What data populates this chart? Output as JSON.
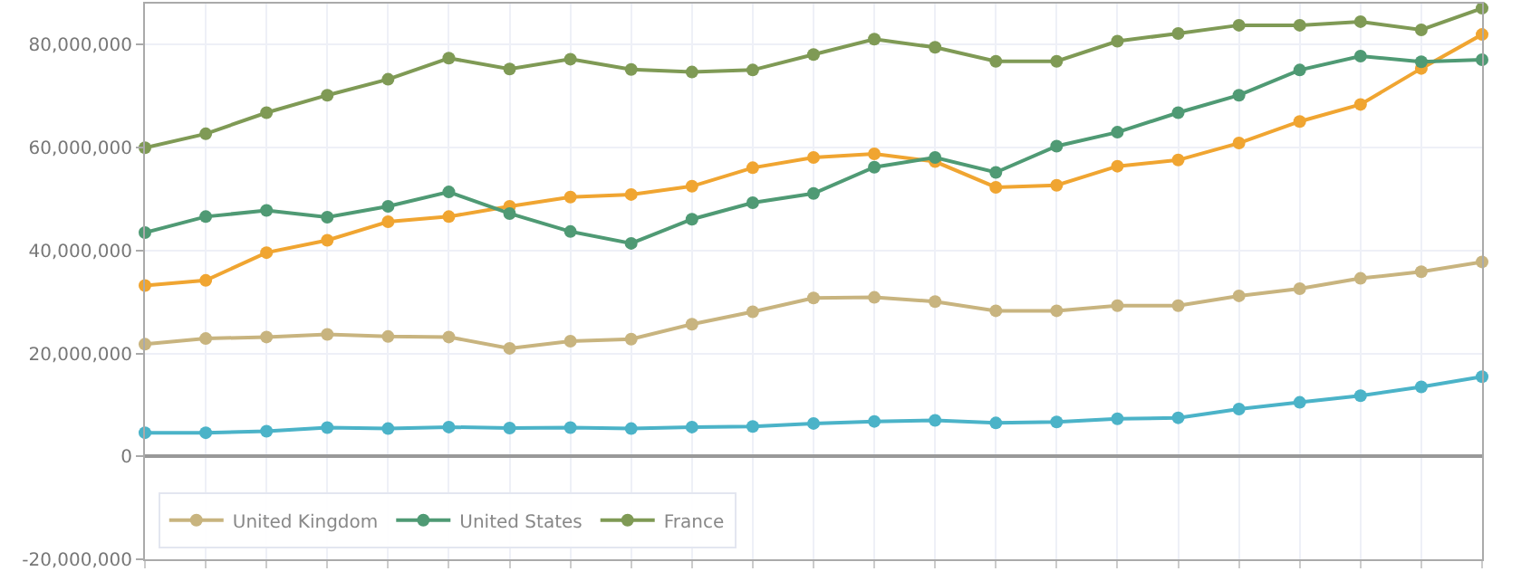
{
  "chart_data": {
    "type": "line",
    "categories": [
      null,
      null,
      null,
      null,
      null,
      null,
      null,
      null,
      null,
      null,
      null,
      null,
      null,
      null,
      null,
      null,
      null,
      null,
      null,
      null,
      null,
      null,
      null
    ],
    "series": [
      {
        "color": "#4bb3c8",
        "values": [
          4600000,
          4600000,
          4900000,
          5600000,
          5400000,
          5700000,
          5500000,
          5600000,
          5400000,
          5700000,
          5800000,
          6400000,
          6800000,
          7000000,
          6500000,
          6700000,
          7300000,
          7500000,
          9200000,
          10500000,
          11800000,
          13500000,
          15500000
        ]
      },
      {
        "color": "#f0a531",
        "values": [
          33200000,
          34200000,
          39600000,
          42000000,
          45600000,
          46600000,
          48600000,
          50400000,
          50900000,
          52500000,
          56100000,
          58100000,
          58800000,
          57300000,
          52300000,
          52700000,
          56400000,
          57600000,
          60900000,
          65100000,
          68400000,
          75400000,
          82000000
        ]
      },
      {
        "name": "United Kingdom",
        "color": "#c8b47f",
        "values": [
          21800000,
          22900000,
          23200000,
          23700000,
          23300000,
          23200000,
          21000000,
          22400000,
          22800000,
          25700000,
          28100000,
          30800000,
          30900000,
          30100000,
          28300000,
          28300000,
          29300000,
          29300000,
          31200000,
          32600000,
          34600000,
          35900000,
          37800000
        ]
      },
      {
        "name": "United States",
        "color": "#4f9a74",
        "values": [
          43500000,
          46600000,
          47800000,
          46500000,
          48600000,
          51400000,
          47200000,
          43700000,
          41400000,
          46100000,
          49300000,
          51100000,
          56200000,
          58100000,
          55200000,
          60300000,
          63000000,
          66800000,
          70200000,
          75100000,
          77800000,
          76700000,
          77100000
        ]
      },
      {
        "name": "France",
        "color": "#7f9a55",
        "values": [
          60000000,
          62700000,
          66800000,
          70200000,
          73300000,
          77400000,
          75300000,
          77200000,
          75200000,
          74700000,
          75100000,
          78100000,
          81100000,
          79500000,
          76800000,
          76800000,
          80700000,
          82200000,
          83800000,
          83800000,
          84500000,
          82900000,
          87100000
        ]
      }
    ],
    "ylim": [
      -20000000,
      88000000
    ],
    "yticks": [
      {
        "value": -20000000,
        "label": "-20,000,000"
      },
      {
        "value": 0,
        "label": "0"
      },
      {
        "value": 20000000,
        "label": "20,000,000"
      },
      {
        "value": 40000000,
        "label": "40,000,000"
      },
      {
        "value": 60000000,
        "label": "60,000,000"
      },
      {
        "value": 80000000,
        "label": "80,000,000"
      }
    ],
    "grid": true,
    "legend": "bottom left",
    "marker": "circle",
    "line_style": "solid",
    "tick_labels": "y"
  }
}
